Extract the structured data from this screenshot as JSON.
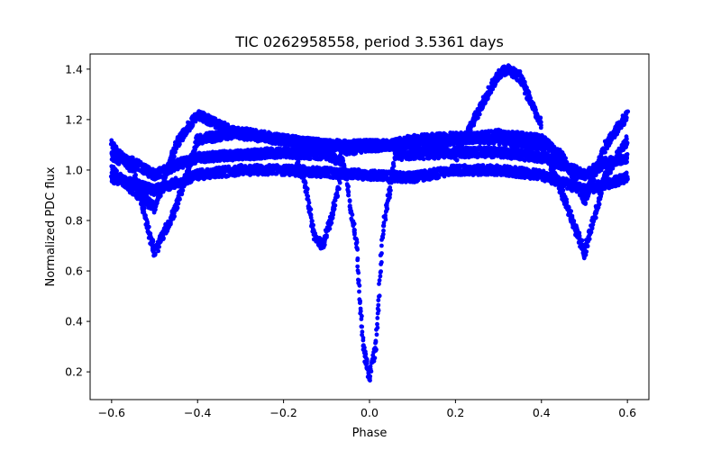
{
  "chart_data": {
    "type": "scatter",
    "title": "TIC 0262958558, period 3.5361 days",
    "xlabel": "Phase",
    "ylabel": "Normalized PDC flux",
    "xlim": [
      -0.65,
      0.65
    ],
    "ylim": [
      0.09,
      1.46
    ],
    "x_ticks": [
      -0.6,
      -0.4,
      -0.2,
      0.0,
      0.2,
      0.4,
      0.6
    ],
    "x_tick_labels": [
      "−0.6",
      "−0.4",
      "−0.2",
      "0.0",
      "0.2",
      "0.4",
      "0.6"
    ],
    "y_ticks": [
      0.2,
      0.4,
      0.6,
      0.8,
      1.0,
      1.2,
      1.4
    ],
    "y_tick_labels": [
      "0.2",
      "0.4",
      "0.6",
      "0.8",
      "1.0",
      "1.2",
      "1.4"
    ],
    "grid": false,
    "legend": "none",
    "marker_color": "#0000ff",
    "series": [
      {
        "description_points": "approximate trend points for visible tracks",
        "tracks": [
          {
            "x": [
              -0.6,
              -0.55,
              -0.5,
              -0.45,
              -0.4,
              -0.3,
              -0.2,
              -0.1,
              -0.06,
              -0.03,
              -0.015,
              0.0,
              0.015,
              0.03,
              0.06,
              0.1,
              0.2,
              0.3,
              0.4,
              0.45,
              0.5,
              0.55,
              0.6
            ],
            "y": [
              1.05,
              1.03,
              0.98,
              1.02,
              1.05,
              1.06,
              1.07,
              1.06,
              1.03,
              0.7,
              0.3,
              0.18,
              0.3,
              0.75,
              1.06,
              1.06,
              1.07,
              1.07,
              1.05,
              1.02,
              0.98,
              1.03,
              1.05
            ]
          },
          {
            "x": [
              -0.6,
              -0.55,
              -0.5,
              -0.45,
              -0.4,
              -0.3,
              -0.2,
              -0.1,
              -0.05,
              0.05,
              0.1,
              0.2,
              0.3,
              0.4,
              0.45,
              0.5,
              0.55,
              0.6
            ],
            "y": [
              1.1,
              1.0,
              0.67,
              0.85,
              1.12,
              1.15,
              1.12,
              1.1,
              1.08,
              1.1,
              1.12,
              1.13,
              1.12,
              1.1,
              0.9,
              0.67,
              0.98,
              1.12
            ]
          },
          {
            "x": [
              -0.6,
              -0.55,
              -0.5,
              -0.45,
              -0.4,
              -0.35,
              -0.3,
              -0.2,
              -0.1,
              0.1,
              0.2,
              0.3,
              0.4,
              0.45,
              0.5,
              0.55,
              0.6
            ],
            "y": [
              1.0,
              0.92,
              0.85,
              1.1,
              1.22,
              1.18,
              1.14,
              1.12,
              1.1,
              1.1,
              1.12,
              1.14,
              1.12,
              1.05,
              0.88,
              1.1,
              1.22
            ]
          },
          {
            "x": [
              -0.18,
              -0.15,
              -0.13,
              -0.11,
              -0.09,
              -0.07
            ],
            "y": [
              1.1,
              0.95,
              0.75,
              0.7,
              0.8,
              0.95
            ]
          },
          {
            "x": [
              0.2,
              0.25,
              0.3,
              0.32,
              0.35,
              0.38,
              0.4
            ],
            "y": [
              1.05,
              1.22,
              1.38,
              1.4,
              1.37,
              1.25,
              1.18
            ]
          },
          {
            "x": [
              -0.6,
              -0.5,
              -0.4,
              -0.3,
              -0.2,
              -0.1,
              0.1,
              0.2,
              0.3,
              0.4,
              0.5,
              0.6
            ],
            "y": [
              0.97,
              0.92,
              0.98,
              1.0,
              1.0,
              0.99,
              0.97,
              1.0,
              1.0,
              0.98,
              0.92,
              0.97
            ]
          }
        ]
      }
    ]
  }
}
